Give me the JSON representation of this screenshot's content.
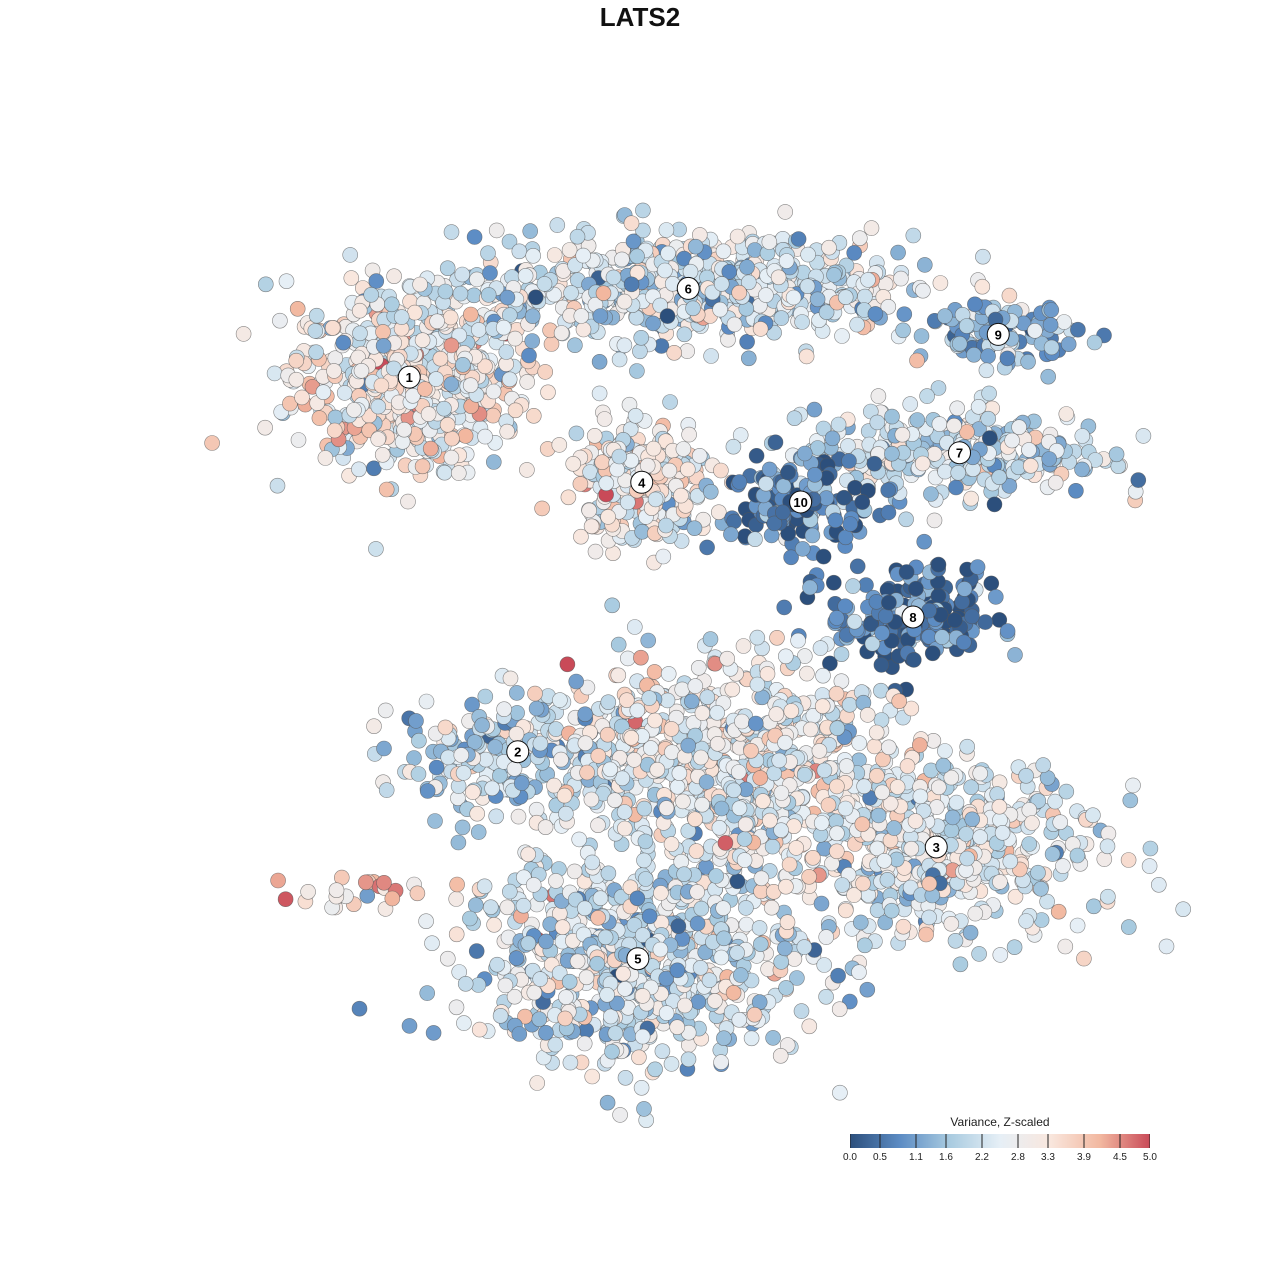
{
  "chart_data": {
    "type": "scatter",
    "title": "LATS2",
    "legend": {
      "title": "Variance, Z-scaled",
      "ticks": [
        "0.0",
        "0.5",
        "1.1",
        "1.6",
        "2.2",
        "2.8",
        "3.3",
        "3.9",
        "4.5",
        "5.0"
      ],
      "range": [
        0,
        5.0
      ],
      "placement": "bottom-right",
      "colors": [
        "#2c4f7c",
        "#5c8cc4",
        "#a9cbe0",
        "#e6eff6",
        "#f9e7de",
        "#f2b8a0",
        "#c94a58"
      ]
    },
    "clusters": [
      {
        "label": "1",
        "x": -6.6,
        "y": 6.0,
        "sx": 1.5,
        "sy": 1.3,
        "n": 620,
        "mean": 2.8
      },
      {
        "label": "6",
        "x": 0.6,
        "y": 8.7,
        "sx": 2.9,
        "sy": 0.8,
        "n": 700,
        "mean": 2.2
      },
      {
        "label": "9",
        "x": 8.6,
        "y": 7.3,
        "sx": 1.0,
        "sy": 0.4,
        "n": 110,
        "mean": 1.4
      },
      {
        "label": "7",
        "x": 7.6,
        "y": 3.7,
        "sx": 1.9,
        "sy": 0.7,
        "n": 300,
        "mean": 2.2
      },
      {
        "label": "4",
        "x": -0.6,
        "y": 2.8,
        "sx": 0.9,
        "sy": 0.9,
        "n": 260,
        "mean": 2.8
      },
      {
        "label": "10",
        "x": 3.5,
        "y": 2.2,
        "sx": 1.0,
        "sy": 0.7,
        "n": 160,
        "mean": 0.6
      },
      {
        "label": "8",
        "x": 6.4,
        "y": -1.3,
        "sx": 1.1,
        "sy": 0.8,
        "n": 200,
        "mean": 0.5
      },
      {
        "label": "2",
        "x": -3.8,
        "y": -5.4,
        "sx": 1.6,
        "sy": 0.9,
        "n": 210,
        "mean": 2.0
      },
      {
        "label": "3",
        "x": 7.0,
        "y": -8.3,
        "sx": 2.1,
        "sy": 1.4,
        "n": 520,
        "mean": 2.5
      },
      {
        "label": "5",
        "x": -0.7,
        "y": -11.7,
        "sx": 2.3,
        "sy": 1.6,
        "n": 720,
        "mean": 2.2
      },
      {
        "label": "",
        "x": 1.5,
        "y": -5.8,
        "sx": 2.3,
        "sy": 1.6,
        "n": 720,
        "mean": 2.7
      },
      {
        "label": "",
        "x": -7.4,
        "y": -9.8,
        "sx": 1.0,
        "sy": 0.3,
        "n": 25,
        "mean": 3.4
      }
    ],
    "xlim": [
      -12,
      12
    ],
    "ylim": [
      -16,
      12
    ]
  }
}
